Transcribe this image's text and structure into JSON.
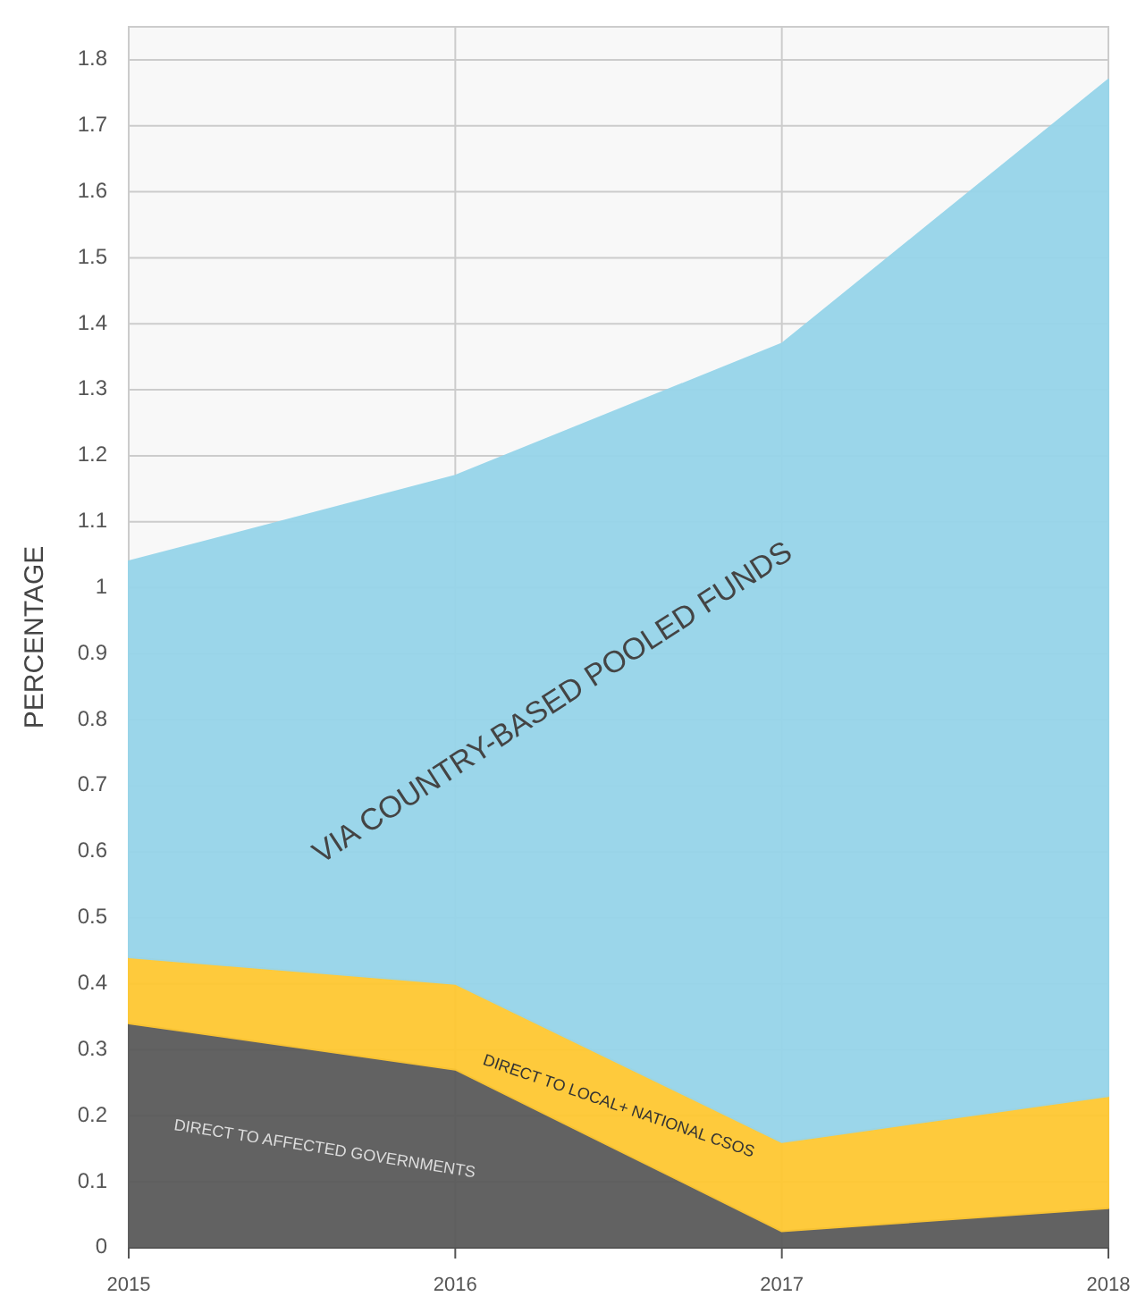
{
  "chart_data": {
    "type": "area",
    "stacked": true,
    "ylabel": "PERCENTAGE",
    "categories": [
      "2015",
      "2016",
      "2017",
      "2018"
    ],
    "ylim": [
      0,
      1.85
    ],
    "yticks": [
      0,
      0.1,
      0.2,
      0.3,
      0.4,
      0.5,
      0.6,
      0.7,
      0.8,
      0.9,
      1,
      1.1,
      1.2,
      1.3,
      1.4,
      1.5,
      1.6,
      1.7,
      1.8
    ],
    "grid": true,
    "series": [
      {
        "name": "DIRECT TO AFFECTED GOVERNMENTS",
        "color": "#5a5a5a",
        "values": [
          0.34,
          0.27,
          0.025,
          0.06
        ]
      },
      {
        "name": "DIRECT TO LOCAL+ NATIONAL CSOS",
        "color": "#ffc832",
        "values": [
          0.1,
          0.13,
          0.135,
          0.17
        ]
      },
      {
        "name": "VIA COUNTRY-BASED POOLED FUNDS",
        "color": "#97d5ea",
        "values": [
          0.6,
          0.77,
          1.21,
          1.54
        ]
      }
    ]
  }
}
